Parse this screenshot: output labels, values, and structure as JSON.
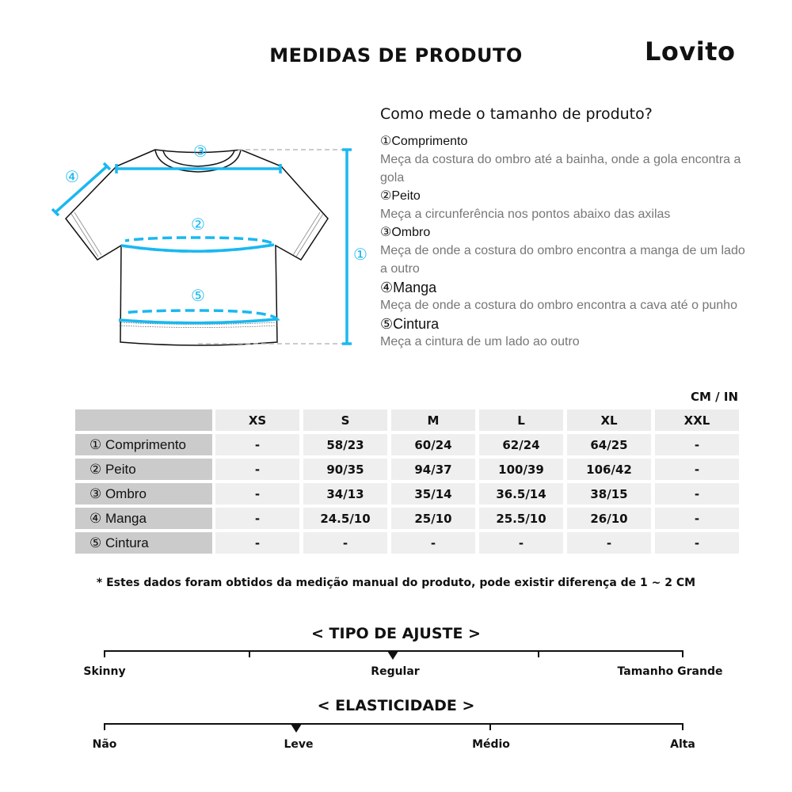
{
  "header": {
    "title": "MEDIDAS DE PRODUTO",
    "logo": "Lovito"
  },
  "guide": {
    "question": "Como mede o tamanho de produto?",
    "items": [
      {
        "heading": "①Comprimento",
        "desc": "Meça da costura do ombro até a bainha, onde a gola encontra a gola"
      },
      {
        "heading": "②Peito",
        "desc": "Meça a circunferência nos pontos abaixo das axilas"
      },
      {
        "heading": "③Ombro",
        "desc": "Meça de onde a costura do ombro encontra a manga de um lado a outro"
      },
      {
        "heading": "④Manga",
        "desc": "Meça de onde a costura do ombro encontra a cava até o punho"
      },
      {
        "heading": "⑤Cintura",
        "desc": "Meça a cintura de um lado ao outro"
      }
    ],
    "diagram_labels": [
      "①",
      "②",
      "③",
      "④",
      "⑤"
    ],
    "accent_color": "#1ab8f0"
  },
  "table": {
    "unit": "CM / IN",
    "sizes": [
      "XS",
      "S",
      "M",
      "L",
      "XL",
      "XXL"
    ],
    "rows": [
      {
        "label": "① Comprimento",
        "values": [
          "-",
          "58/23",
          "60/24",
          "62/24",
          "64/25",
          "-"
        ]
      },
      {
        "label": "② Peito",
        "values": [
          "-",
          "90/35",
          "94/37",
          "100/39",
          "106/42",
          "-"
        ]
      },
      {
        "label": "③ Ombro",
        "values": [
          "-",
          "34/13",
          "35/14",
          "36.5/14",
          "38/15",
          "-"
        ]
      },
      {
        "label": "④ Manga",
        "values": [
          "-",
          "24.5/10",
          "25/10",
          "25.5/10",
          "26/10",
          "-"
        ]
      },
      {
        "label": "⑤ Cintura",
        "values": [
          "-",
          "-",
          "-",
          "-",
          "-",
          "-"
        ]
      }
    ]
  },
  "note": "* Estes dados foram obtidos da medição manual do produto, pode existir diferença de 1 ~ 2 CM",
  "fit": {
    "title": "< TIPO DE AJUSTE >",
    "labels": [
      "Skinny",
      "Regular",
      "Tamanho Grande"
    ],
    "selected": "Regular"
  },
  "elasticity": {
    "title": "< ELASTICIDADE >",
    "labels": [
      "Não",
      "Leve",
      "Médio",
      "Alta"
    ],
    "selected": "Leve"
  }
}
